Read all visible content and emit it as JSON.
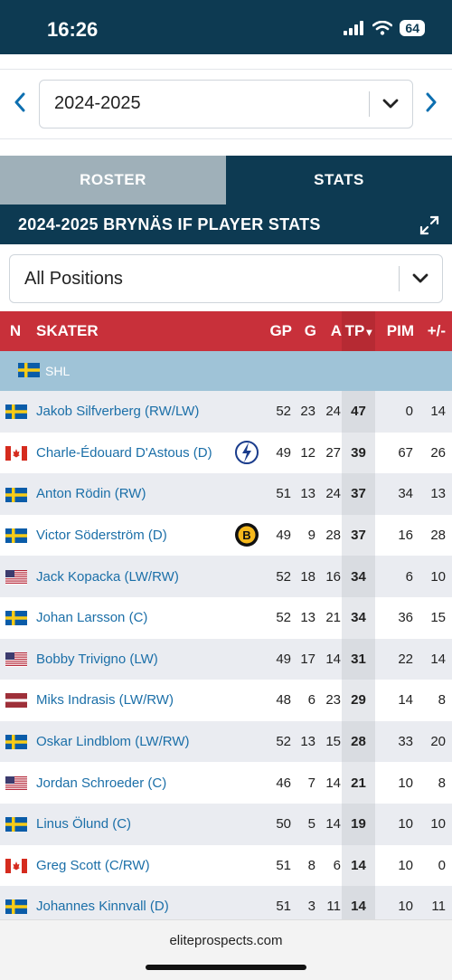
{
  "status_bar": {
    "time": "16:26",
    "battery": "64"
  },
  "season_selector": {
    "value": "2024-2025"
  },
  "tabs": [
    {
      "label": "ROSTER",
      "active": false
    },
    {
      "label": "STATS",
      "active": true
    }
  ],
  "header": {
    "title": "2024-2025 BRYNÄS IF PLAYER STATS"
  },
  "position_filter": {
    "value": "All Positions"
  },
  "table": {
    "columns": {
      "n": "N",
      "skater": "SKATER",
      "gp": "GP",
      "g": "G",
      "a": "A",
      "tp": "TP",
      "sort_indicator": "▾",
      "pim": "PIM",
      "pm": "+/-"
    },
    "league": {
      "name": "SHL",
      "flag": "sweden"
    },
    "rows": [
      {
        "name": "Jakob Silfverberg (RW/LW)",
        "flag": "sweden",
        "gp": "52",
        "g": "23",
        "a": "24",
        "tp": "47",
        "pim": "0",
        "pm": "14"
      },
      {
        "name": "Charle-Édouard D'Astous (D)",
        "flag": "canada",
        "team_logo": "lightning-logo-icon",
        "gp": "49",
        "g": "12",
        "a": "27",
        "tp": "39",
        "pim": "67",
        "pm": "26"
      },
      {
        "name": "Anton Rödin (RW)",
        "flag": "sweden",
        "gp": "51",
        "g": "13",
        "a": "24",
        "tp": "37",
        "pim": "34",
        "pm": "13"
      },
      {
        "name": "Victor Söderström (D)",
        "flag": "sweden",
        "team_logo": "bruins-logo-icon",
        "gp": "49",
        "g": "9",
        "a": "28",
        "tp": "37",
        "pim": "16",
        "pm": "28"
      },
      {
        "name": "Jack Kopacka (LW/RW)",
        "flag": "usa",
        "gp": "52",
        "g": "18",
        "a": "16",
        "tp": "34",
        "pim": "6",
        "pm": "10"
      },
      {
        "name": "Johan Larsson (C)",
        "flag": "sweden",
        "gp": "52",
        "g": "13",
        "a": "21",
        "tp": "34",
        "pim": "36",
        "pm": "15"
      },
      {
        "name": "Bobby Trivigno (LW)",
        "flag": "usa",
        "gp": "49",
        "g": "17",
        "a": "14",
        "tp": "31",
        "pim": "22",
        "pm": "14"
      },
      {
        "name": "Miks Indrasis (LW/RW)",
        "flag": "latvia",
        "gp": "48",
        "g": "6",
        "a": "23",
        "tp": "29",
        "pim": "14",
        "pm": "8"
      },
      {
        "name": "Oskar Lindblom (LW/RW)",
        "flag": "sweden",
        "gp": "52",
        "g": "13",
        "a": "15",
        "tp": "28",
        "pim": "33",
        "pm": "20"
      },
      {
        "name": "Jordan Schroeder (C)",
        "flag": "usa",
        "gp": "46",
        "g": "7",
        "a": "14",
        "tp": "21",
        "pim": "10",
        "pm": "8"
      },
      {
        "name": "Linus Ölund (C)",
        "flag": "sweden",
        "gp": "50",
        "g": "5",
        "a": "14",
        "tp": "19",
        "pim": "10",
        "pm": "10"
      },
      {
        "name": "Greg Scott (C/RW)",
        "flag": "canada",
        "gp": "51",
        "g": "8",
        "a": "6",
        "tp": "14",
        "pim": "10",
        "pm": "0"
      },
      {
        "name": "Johannes Kinnvall (D)",
        "flag": "sweden",
        "gp": "51",
        "g": "3",
        "a": "11",
        "tp": "14",
        "pim": "10",
        "pm": "11"
      }
    ]
  },
  "footer": {
    "url": "eliteprospects.com"
  },
  "colors": {
    "navy": "#0d3a52",
    "red_header": "#c8303a",
    "league_row": "#9fc3d7",
    "link": "#1b6fa8"
  }
}
